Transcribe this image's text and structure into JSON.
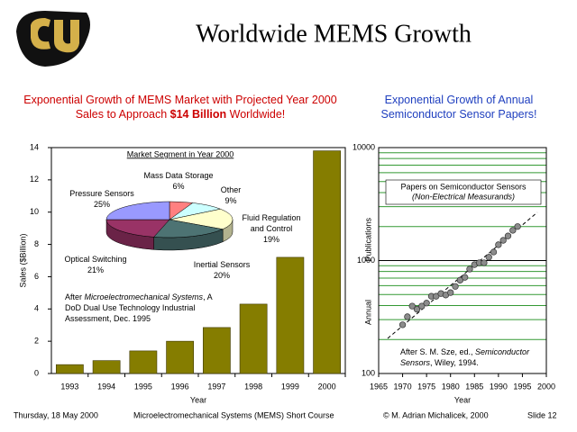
{
  "header": {
    "title": "Worldwide MEMS Growth"
  },
  "footer": {
    "date": "Thursday, 18 May 2000",
    "course": "Microelectromechanical Systems (MEMS) Short Course",
    "copyright": "© M. Adrian Michalicek, 2000",
    "slide": "Slide 12"
  },
  "chart_data": [
    {
      "type": "bar",
      "title_runs": [
        {
          "text": "Exponential Growth of MEMS Market with Projected Year 2000 Sales to Approach "
        },
        {
          "text": "$14 Billion",
          "bold": true
        },
        {
          "text": " Worldwide!"
        }
      ],
      "title_color": "#cc0000",
      "xlabel": "Year",
      "ylabel": "Sales ($Billion)",
      "categories": [
        "1993",
        "1994",
        "1995",
        "1996",
        "1997",
        "1998",
        "1999",
        "2000"
      ],
      "values": [
        0.55,
        0.8,
        1.4,
        2.0,
        2.85,
        4.3,
        7.2,
        13.8
      ],
      "color": "#857d00",
      "ylim": [
        0,
        14
      ],
      "yticks": [
        0,
        2,
        4,
        6,
        8,
        10,
        12,
        14
      ],
      "annotation_runs": [
        {
          "text": "After "
        },
        {
          "text": "Microelectromechanical Systems",
          "italic": true
        },
        {
          "text": ", A DoD Dual Use Technology Industrial Assessment, Dec. 1995"
        }
      ]
    },
    {
      "type": "pie",
      "title": "Market Segment in Year 2000",
      "labels": [
        "Mass Data Storage",
        "Other",
        "Fluid Regulation and Control",
        "Inertial Sensors",
        "Optical Switching",
        "Pressure Sensors"
      ],
      "values": [
        6,
        9,
        19,
        20,
        21,
        25
      ],
      "value_labels": [
        "6%",
        "9%",
        "19%",
        "20%",
        "21%",
        "25%"
      ],
      "colors": [
        "#ff8080",
        "#ccffff",
        "#ffffcc",
        "#4d7373",
        "#993366",
        "#9999ff"
      ]
    },
    {
      "type": "scatter",
      "title": "Exponential Growth of Annual Semiconductor Sensor Papers!",
      "title_color": "#1f3fbf",
      "xlabel": "Year",
      "ylabel": "Annual Publications",
      "x": [
        1970,
        1971,
        1972,
        1973,
        1974,
        1975,
        1976,
        1977,
        1978,
        1979,
        1980,
        1981,
        1982,
        1983,
        1984,
        1985,
        1986,
        1987,
        1988,
        1989,
        1990,
        1991,
        1992,
        1993,
        1994
      ],
      "values": [
        270,
        318,
        395,
        370,
        395,
        420,
        483,
        483,
        510,
        495,
        520,
        590,
        670,
        710,
        840,
        920,
        955,
        955,
        1070,
        1190,
        1380,
        1510,
        1650,
        1850,
        2000
      ],
      "color": "#8c8c8c",
      "xlim": [
        1965,
        2000
      ],
      "xticks": [
        1965,
        1970,
        1975,
        1980,
        1985,
        1990,
        1995,
        2000
      ],
      "ylim": [
        100,
        10000
      ],
      "yticks": [
        100,
        1000,
        10000
      ],
      "log_y": true,
      "minor_yticks": [
        200,
        300,
        400,
        500,
        600,
        700,
        800,
        900,
        2000,
        3000,
        4000,
        5000,
        6000,
        7000,
        8000,
        9000
      ],
      "grid_color": "#339933",
      "box_title": "Papers on Semiconductor Sensors",
      "box_subtitle": "(Non-Electrical Measurands)",
      "credit_runs": [
        {
          "text": "After S. M. Sze, ed., "
        },
        {
          "text": "Semiconductor Sensors",
          "italic": true
        },
        {
          "text": ", Wiley, 1994."
        }
      ]
    }
  ]
}
